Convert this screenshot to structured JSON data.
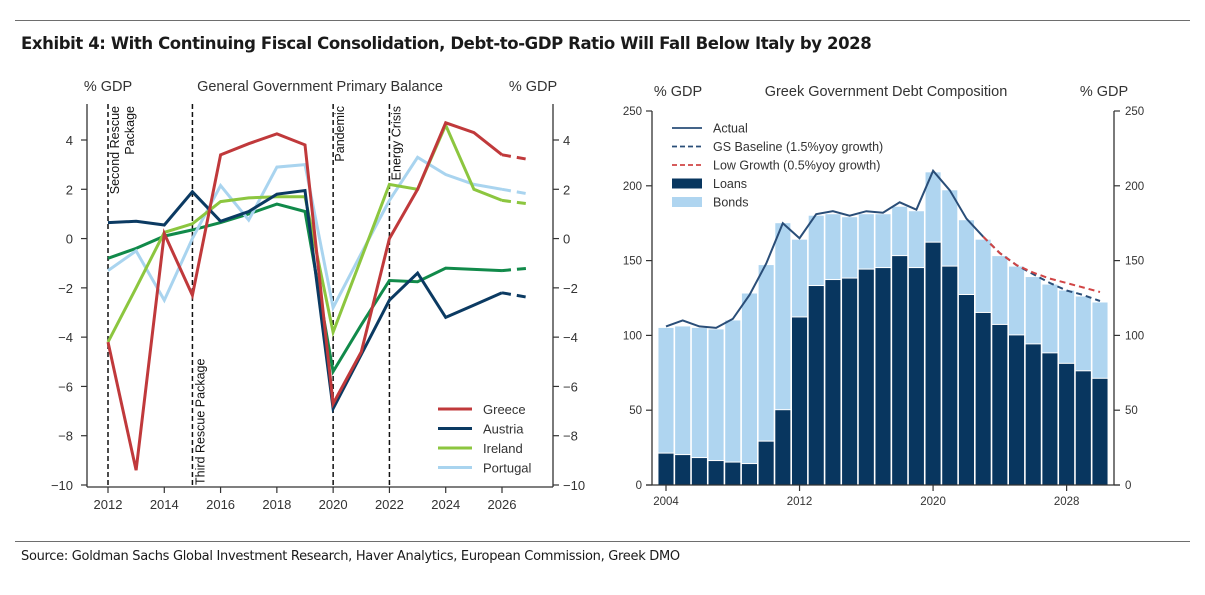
{
  "exhibit": {
    "title": "Exhibit 4: With Continuing Fiscal Consolidation, Debt-to-GDP Ratio Will Fall Below Italy by 2028",
    "source": "Source: Goldman Sachs Global Investment Research, Haver Analytics, European Commission, Greek DMO"
  },
  "chart_data": [
    {
      "type": "line",
      "title": "General Government Primary Balance",
      "ylabel_left": "% GDP",
      "ylabel_right": "% GDP",
      "xlabel": "",
      "x": [
        2012,
        2013,
        2014,
        2015,
        2016,
        2017,
        2018,
        2019,
        2020,
        2021,
        2022,
        2023,
        2024,
        2025,
        2026,
        2027
      ],
      "forecast_from": 2026,
      "xlim": [
        2011.25,
        2027.7
      ],
      "ylim": [
        -10,
        5.4
      ],
      "xticks": [
        "2012",
        "2014",
        "2016",
        "2018",
        "2020",
        "2022",
        "2024",
        "2026"
      ],
      "xtick_values": [
        2012,
        2014,
        2016,
        2018,
        2020,
        2022,
        2024,
        2026
      ],
      "yticks_left": [
        "4",
        "2",
        "0",
        "−2",
        "−4",
        "−6",
        "−8",
        "−10"
      ],
      "yticks_right": [
        "4",
        "2",
        "0",
        "−2",
        "−4",
        "−6",
        "−8",
        "−10"
      ],
      "ytick_values": [
        4,
        2,
        0,
        -2,
        -4,
        -6,
        -8,
        -10
      ],
      "grid": false,
      "legend_position": "bottom-right",
      "series": [
        {
          "name": "Greece",
          "color": "#c0393b",
          "in_legend": true,
          "values": [
            -4.2,
            -9.4,
            0.2,
            -2.3,
            3.4,
            3.85,
            4.25,
            3.8,
            -6.7,
            -4.6,
            0.0,
            2.0,
            4.7,
            4.3,
            3.4,
            3.2
          ]
        },
        {
          "name": "Austria",
          "color": "#0b3a62",
          "in_legend": true,
          "values": [
            0.65,
            0.7,
            0.55,
            1.9,
            0.7,
            1.1,
            1.8,
            1.95,
            -6.9,
            -4.7,
            -2.5,
            -1.4,
            -3.2,
            -2.7,
            -2.2,
            -2.4
          ]
        },
        {
          "name": "Ireland",
          "color": "#8cc63f",
          "in_legend": true,
          "values": [
            -4.2,
            -2.0,
            0.25,
            0.6,
            1.5,
            1.65,
            1.7,
            1.7,
            -3.8,
            -0.8,
            2.2,
            2.0,
            4.6,
            2.0,
            1.55,
            1.4
          ]
        },
        {
          "name": "Portugal",
          "color": "#a9d4ef",
          "in_legend": true,
          "values": [
            -1.3,
            -0.5,
            -2.5,
            0.0,
            2.15,
            0.75,
            2.9,
            3.0,
            -2.8,
            -0.6,
            1.55,
            3.3,
            2.6,
            2.2,
            2.0,
            1.8
          ]
        },
        {
          "name": "Other (unlabeled)",
          "color": "#118a4a",
          "in_legend": false,
          "values": [
            -0.8,
            -0.4,
            0.1,
            0.35,
            0.65,
            1.0,
            1.4,
            1.1,
            -5.4,
            -3.5,
            -1.7,
            -1.75,
            -1.2,
            -1.25,
            -1.3,
            -1.2
          ]
        }
      ],
      "annotations": [
        {
          "x": 2012,
          "label": "Second Rescue Package",
          "lines": [
            "Second Rescue",
            "Package"
          ],
          "position": "top"
        },
        {
          "x": 2015,
          "label": "Third Rescue Package",
          "lines": [
            "Third Rescue Package"
          ],
          "position": "bottom"
        },
        {
          "x": 2020,
          "label": "Pandemic",
          "lines": [
            "Pandemic"
          ],
          "position": "top"
        },
        {
          "x": 2022,
          "label": "Energy Crisis",
          "lines": [
            "Energy Crisis"
          ],
          "position": "top"
        }
      ]
    },
    {
      "type": "bar",
      "stacked": true,
      "title": "Greek Government Debt Composition",
      "ylabel_left": "% GDP",
      "ylabel_right": "% GDP",
      "xlabel": "",
      "categories": [
        2004,
        2005,
        2006,
        2007,
        2008,
        2009,
        2010,
        2011,
        2012,
        2013,
        2014,
        2015,
        2016,
        2017,
        2018,
        2019,
        2020,
        2021,
        2022,
        2023,
        2024,
        2025,
        2026,
        2027,
        2028,
        2029,
        2030
      ],
      "xticks": [
        "2004",
        "2012",
        "2020",
        "2028"
      ],
      "xtick_values": [
        2004,
        2012,
        2020,
        2028
      ],
      "ylim": [
        0,
        250
      ],
      "yticks_left": [
        "250",
        "200",
        "150",
        "100",
        "50",
        "0"
      ],
      "yticks_right": [
        "250",
        "200",
        "150",
        "100",
        "50",
        "0"
      ],
      "ytick_values": [
        250,
        200,
        150,
        100,
        50,
        0
      ],
      "grid": false,
      "legend_position": "top-left",
      "series": [
        {
          "name": "Loans",
          "color": "#08365f",
          "values": [
            21,
            20,
            18,
            16,
            15,
            14,
            29,
            50,
            112,
            133,
            137,
            138,
            144,
            145,
            153,
            145,
            162,
            146,
            127,
            115,
            107,
            100,
            94,
            88,
            81,
            76,
            71
          ]
        },
        {
          "name": "Bonds",
          "color": "#afd5f0",
          "values": [
            84,
            86,
            87,
            88,
            95,
            114,
            118,
            125,
            52,
            47,
            44,
            41,
            37,
            36,
            33,
            38,
            47,
            51,
            50,
            49,
            46,
            46,
            45,
            46,
            49,
            50,
            51
          ]
        }
      ],
      "lines": [
        {
          "name": "Actual",
          "color": "#2a4e78",
          "style": "solid",
          "x": [
            2004,
            2005,
            2006,
            2007,
            2008,
            2009,
            2010,
            2011,
            2012,
            2013,
            2014,
            2015,
            2016,
            2017,
            2018,
            2019,
            2020,
            2021,
            2022,
            2023
          ],
          "values": [
            106,
            110,
            106,
            105,
            111,
            127,
            148,
            175,
            165,
            181,
            183,
            180,
            183,
            182,
            189,
            184,
            210,
            197,
            178,
            166
          ]
        },
        {
          "name": "GS Baseline (1.5%yoy growth)",
          "color": "#2a4e78",
          "style": "dashed",
          "x": [
            2023,
            2024,
            2025,
            2026,
            2027,
            2028,
            2029,
            2030
          ],
          "values": [
            166,
            155,
            147,
            141,
            135,
            130,
            127,
            123
          ]
        },
        {
          "name": "Low Growth (0.5%yoy growth)",
          "color": "#d14545",
          "style": "dashed",
          "x": [
            2023,
            2024,
            2025,
            2026,
            2027,
            2028,
            2029,
            2030
          ],
          "values": [
            166,
            155,
            147,
            142,
            138,
            135,
            132,
            129
          ]
        }
      ],
      "legend_order": [
        "Actual",
        "GS Baseline (1.5%yoy growth)",
        "Low Growth (0.5%yoy growth)",
        "Loans",
        "Bonds"
      ]
    }
  ]
}
